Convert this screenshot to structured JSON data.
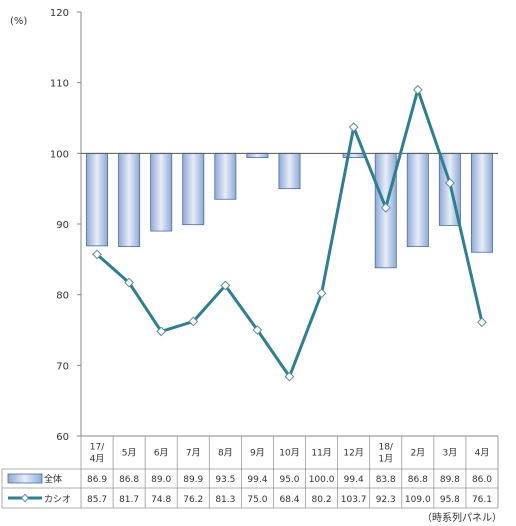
{
  "chart_data": {
    "type": "bar",
    "ylabel": "(%)",
    "ylim": [
      60,
      120
    ],
    "yticks": [
      60,
      70,
      80,
      90,
      100,
      110,
      120
    ],
    "baseline": 100,
    "categories": [
      [
        "17/",
        "4月"
      ],
      [
        "5月"
      ],
      [
        "6月"
      ],
      [
        "7月"
      ],
      [
        "8月"
      ],
      [
        "9月"
      ],
      [
        "10月"
      ],
      [
        "11月"
      ],
      [
        "12月"
      ],
      [
        "18/",
        "1月"
      ],
      [
        "2月"
      ],
      [
        "3月"
      ],
      [
        "4月"
      ]
    ],
    "series": [
      {
        "name": "全体",
        "kind": "bar",
        "values": [
          86.9,
          86.8,
          89.0,
          89.9,
          93.5,
          99.4,
          95.0,
          100.0,
          99.4,
          83.8,
          86.8,
          89.8,
          86.0
        ],
        "labels": [
          "86.9",
          "86.8",
          "89.0",
          "89.9",
          "93.5",
          "99.4",
          "95.0",
          "100.0",
          "99.4",
          "83.8",
          "86.8",
          "89.8",
          "86.0"
        ]
      },
      {
        "name": "カシオ",
        "kind": "line",
        "values": [
          85.7,
          81.7,
          74.8,
          76.2,
          81.3,
          75.0,
          68.4,
          80.2,
          103.7,
          92.3,
          109.0,
          95.8,
          76.1
        ],
        "labels": [
          "85.7",
          "81.7",
          "74.8",
          "76.2",
          "81.3",
          "75.0",
          "68.4",
          "80.2",
          "103.7",
          "92.3",
          "109.0",
          "95.8",
          "76.1"
        ]
      }
    ],
    "colors": {
      "bar_fill": "#b8c9e8",
      "bar_stroke": "#4a6fa8",
      "line": "#2e7f93",
      "marker_fill": "#ffffff"
    },
    "grid": false,
    "legend": "table-below",
    "note": "（時系列パネル）"
  }
}
